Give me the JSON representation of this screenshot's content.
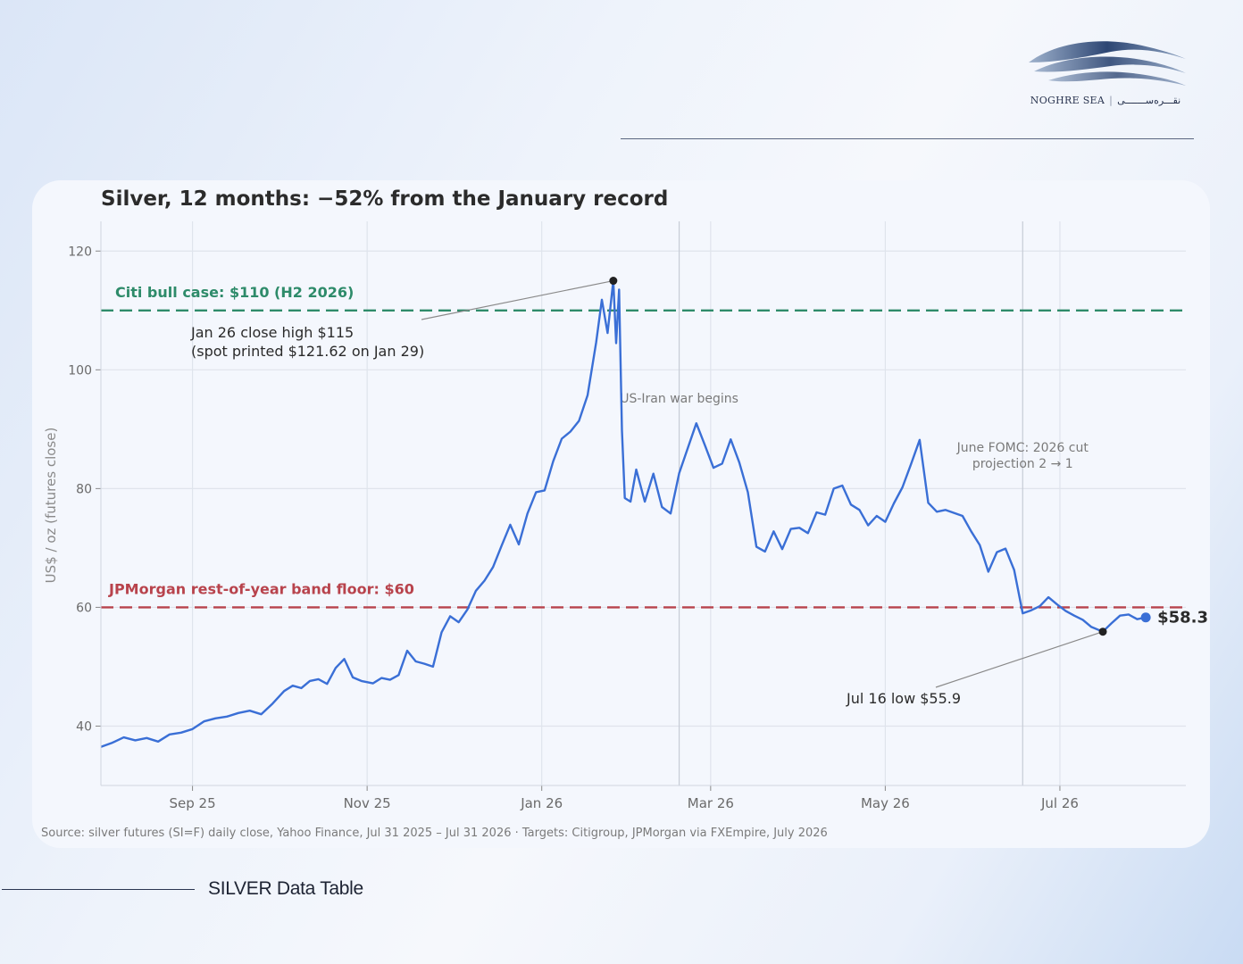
{
  "brand": {
    "name_en": "NOGHRE SEA",
    "name_fa": "نقـــره‌ســـــــی"
  },
  "footer_label": "SILVER Data Table",
  "chart_data": {
    "type": "line",
    "title": "Silver, 12 months: −52% from the January record",
    "ylabel": "US$ / oz (futures close)",
    "xlabel": "",
    "x_range": [
      "2025-07-31",
      "2026-08-14"
    ],
    "ylim": [
      30,
      125
    ],
    "grid": true,
    "y_ticks": [
      40,
      60,
      80,
      100,
      120
    ],
    "x_ticks": [
      {
        "date": "2025-09-01",
        "label": "Sep 25"
      },
      {
        "date": "2025-11-01",
        "label": "Nov 25"
      },
      {
        "date": "2026-01-01",
        "label": "Jan 26"
      },
      {
        "date": "2026-03-01",
        "label": "Mar 26"
      },
      {
        "date": "2026-05-01",
        "label": "May 26"
      },
      {
        "date": "2026-07-01",
        "label": "Jul 26"
      }
    ],
    "line_color": "#3a6fd6",
    "series": [
      {
        "x": [
          "2025-07-31",
          "2025-08-04",
          "2025-08-08",
          "2025-08-12",
          "2025-08-16",
          "2025-08-20",
          "2025-08-24",
          "2025-08-28",
          "2025-09-01",
          "2025-09-05",
          "2025-09-09",
          "2025-09-13",
          "2025-09-17",
          "2025-09-21",
          "2025-09-25",
          "2025-09-29",
          "2025-10-03",
          "2025-10-06",
          "2025-10-09",
          "2025-10-12",
          "2025-10-15",
          "2025-10-18",
          "2025-10-21",
          "2025-10-24",
          "2025-10-27",
          "2025-10-30",
          "2025-11-03",
          "2025-11-06",
          "2025-11-09",
          "2025-11-12",
          "2025-11-15",
          "2025-11-18",
          "2025-11-21",
          "2025-11-24",
          "2025-11-27",
          "2025-11-30",
          "2025-12-03",
          "2025-12-06",
          "2025-12-09",
          "2025-12-12",
          "2025-12-15",
          "2025-12-18",
          "2025-12-21",
          "2025-12-24",
          "2025-12-27",
          "2025-12-30",
          "2026-01-02",
          "2026-01-05",
          "2026-01-08",
          "2026-01-11",
          "2026-01-14",
          "2026-01-17",
          "2026-01-20",
          "2026-01-22",
          "2026-01-24",
          "2026-01-26",
          "2026-01-27",
          "2026-01-28",
          "2026-01-29",
          "2026-01-30",
          "2026-02-01",
          "2026-02-03",
          "2026-02-06",
          "2026-02-09",
          "2026-02-12",
          "2026-02-15",
          "2026-02-18",
          "2026-02-21",
          "2026-02-24",
          "2026-02-27",
          "2026-03-02",
          "2026-03-05",
          "2026-03-08",
          "2026-03-11",
          "2026-03-14",
          "2026-03-17",
          "2026-03-20",
          "2026-03-23",
          "2026-03-26",
          "2026-03-29",
          "2026-04-01",
          "2026-04-04",
          "2026-04-07",
          "2026-04-10",
          "2026-04-13",
          "2026-04-16",
          "2026-04-19",
          "2026-04-22",
          "2026-04-25",
          "2026-04-28",
          "2026-05-01",
          "2026-05-04",
          "2026-05-07",
          "2026-05-10",
          "2026-05-13",
          "2026-05-16",
          "2026-05-19",
          "2026-05-22",
          "2026-05-25",
          "2026-05-28",
          "2026-05-31",
          "2026-06-03",
          "2026-06-06",
          "2026-06-09",
          "2026-06-12",
          "2026-06-15",
          "2026-06-18",
          "2026-06-21",
          "2026-06-24",
          "2026-06-27",
          "2026-06-30",
          "2026-07-03",
          "2026-07-06",
          "2026-07-09",
          "2026-07-12",
          "2026-07-16",
          "2026-07-19",
          "2026-07-22",
          "2026-07-25",
          "2026-07-28",
          "2026-07-31"
        ],
        "y": [
          36.5,
          37.2,
          38.1,
          37.6,
          38.0,
          37.4,
          38.6,
          38.9,
          39.5,
          40.8,
          41.3,
          41.6,
          42.2,
          42.6,
          42.0,
          43.8,
          45.9,
          46.8,
          46.4,
          47.6,
          47.9,
          47.1,
          49.8,
          51.3,
          48.2,
          47.6,
          47.2,
          48.1,
          47.8,
          48.6,
          52.7,
          50.9,
          50.5,
          50.0,
          55.8,
          58.5,
          57.5,
          59.6,
          62.8,
          64.5,
          66.8,
          70.4,
          73.9,
          70.6,
          75.8,
          79.4,
          79.7,
          84.6,
          88.4,
          89.6,
          91.4,
          95.7,
          104.6,
          111.8,
          106.2,
          115.0,
          104.5,
          113.5,
          89.8,
          78.4,
          77.8,
          83.2,
          77.8,
          82.5,
          76.9,
          75.8,
          82.6,
          86.8,
          91.0,
          87.3,
          83.5,
          84.2,
          88.3,
          84.4,
          79.4,
          70.2,
          69.4,
          72.8,
          69.8,
          73.2,
          73.4,
          72.5,
          76.0,
          75.6,
          80.0,
          80.5,
          77.3,
          76.4,
          73.8,
          75.4,
          74.4,
          77.5,
          80.2,
          84.1,
          88.2,
          77.6,
          76.1,
          76.4,
          75.9,
          75.4,
          72.8,
          70.5,
          66.0,
          69.3,
          69.9,
          66.3,
          59.0,
          59.5,
          60.2,
          61.7,
          60.5,
          59.4,
          58.6,
          57.9,
          56.7,
          55.9,
          57.3,
          58.6,
          58.8,
          58.0,
          58.3
        ]
      }
    ],
    "reference_lines": [
      {
        "label": "Citi bull case: $110 (H2 2026)",
        "value": 110,
        "color": "#2e8b6a"
      },
      {
        "label": "JPMorgan rest-of-year band floor: $60",
        "value": 60,
        "color": "#b8434c"
      }
    ],
    "event_lines": [
      {
        "date": "2026-02-18",
        "label": "US-Iran war begins"
      },
      {
        "date": "2026-06-18",
        "label": "June FOMC: 2026 cut",
        "label2": "projection 2 → 1"
      }
    ],
    "annotations": [
      {
        "date": "2026-01-26",
        "value": 115,
        "text": "Jan 26 close high $115",
        "text2": "(spot printed $121.62 on Jan 29)"
      },
      {
        "date": "2026-07-16",
        "value": 55.9,
        "text": "Jul 16 low $55.9"
      }
    ],
    "last_value_label": "$58.3",
    "source": "Source: silver futures (SI=F) daily close, Yahoo Finance, Jul 31 2025 – Jul 31 2026 · Targets: Citigroup, JPMorgan via FXEmpire, July 2026"
  }
}
